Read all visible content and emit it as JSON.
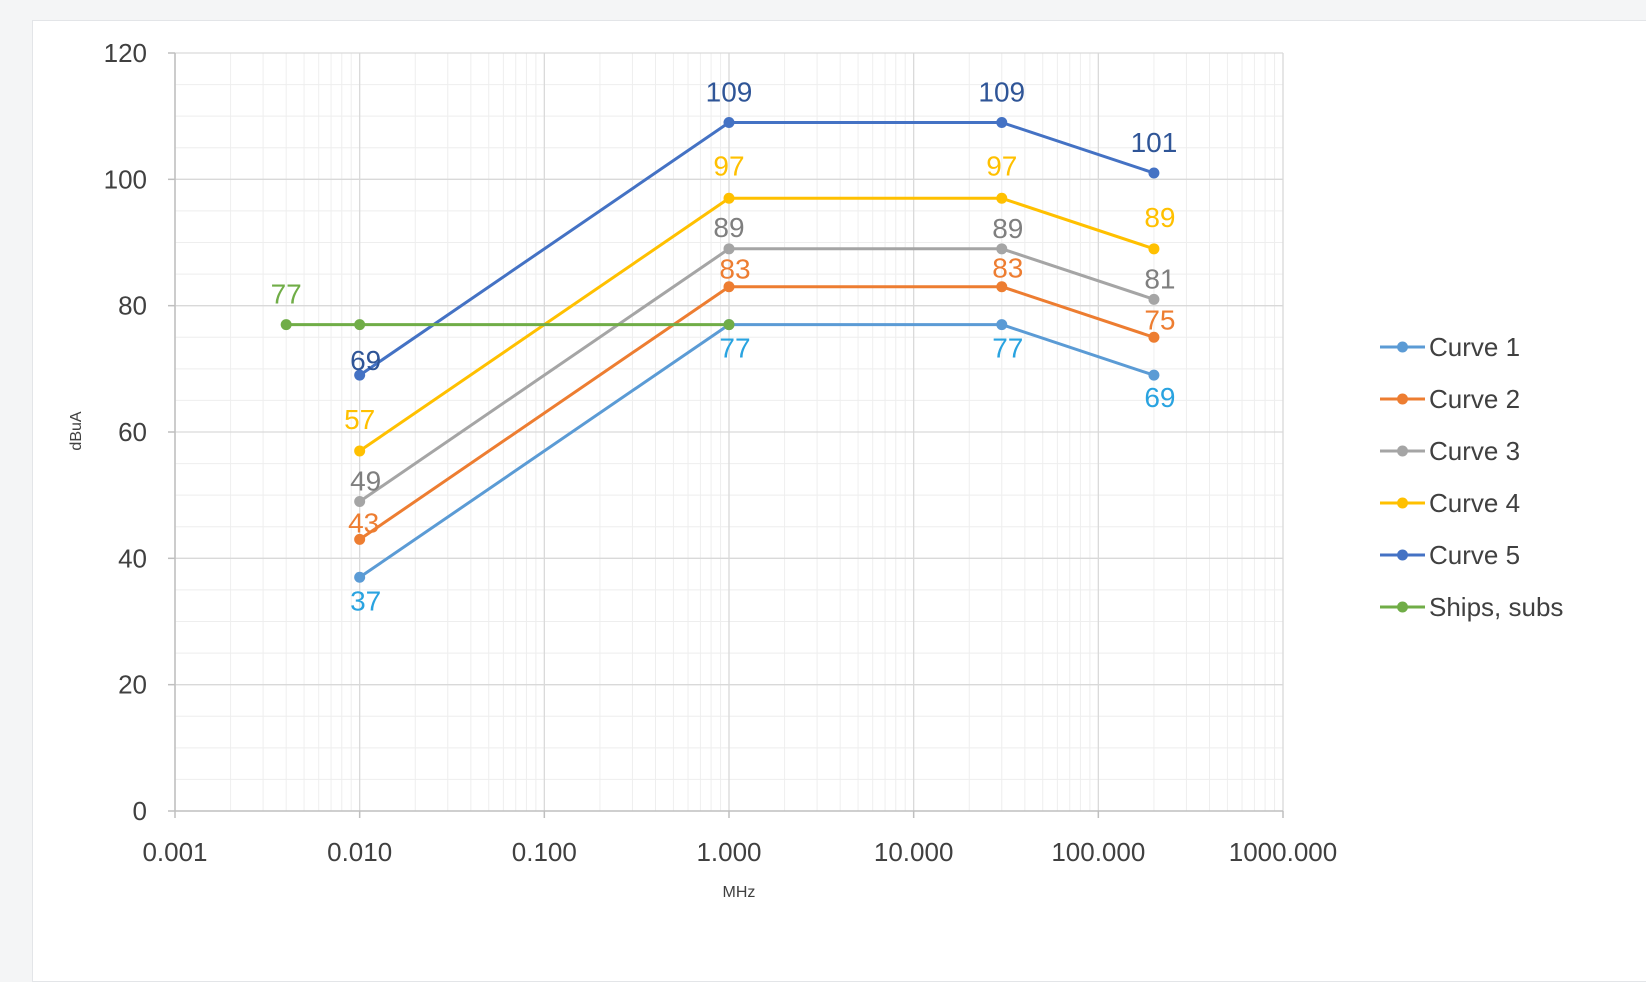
{
  "chart_data": {
    "type": "line",
    "xscale": "log",
    "xlim": [
      0.001,
      1000
    ],
    "ylim": [
      0,
      120
    ],
    "grid": true,
    "xlabel": "MHz",
    "ylabel": "dBuA",
    "legend_position": "right",
    "x_ticks": [
      "0.001",
      "0.010",
      "0.100",
      "1.000",
      "10.000",
      "100.000",
      "1000.000"
    ],
    "y_ticks": [
      "0",
      "20",
      "40",
      "60",
      "80",
      "100",
      "120"
    ],
    "series": [
      {
        "name": "Curve 1",
        "color": "#5b9bd5",
        "label_color": "#29a3e0",
        "x": [
          0.01,
          1,
          30,
          200
        ],
        "y": [
          37,
          77,
          77,
          69
        ],
        "labels": [
          "37",
          "77",
          "77",
          "69"
        ]
      },
      {
        "name": "Curve 2",
        "color": "#ed7d31",
        "label_color": "#ed7d31",
        "x": [
          0.01,
          1,
          30,
          200
        ],
        "y": [
          43,
          83,
          83,
          75
        ],
        "labels": [
          "43",
          "83",
          "83",
          "75"
        ]
      },
      {
        "name": "Curve 3",
        "color": "#a5a5a5",
        "label_color": "#7f7f7f",
        "x": [
          0.01,
          1,
          30,
          200
        ],
        "y": [
          49,
          89,
          89,
          81
        ],
        "labels": [
          "49",
          "89",
          "89",
          "81"
        ]
      },
      {
        "name": "Curve 4",
        "color": "#ffc000",
        "label_color": "#ffc000",
        "x": [
          0.01,
          1,
          30,
          200
        ],
        "y": [
          57,
          97,
          97,
          89
        ],
        "labels": [
          "57",
          "97",
          "97",
          "89"
        ]
      },
      {
        "name": "Curve 5",
        "color": "#4472c4",
        "label_color": "#2f5597",
        "x": [
          0.01,
          1,
          30,
          200
        ],
        "y": [
          69,
          109,
          109,
          101
        ],
        "labels": [
          "69",
          "109",
          "109",
          "101"
        ]
      },
      {
        "name": "Ships, subs",
        "color": "#70ad47",
        "label_color": "#70ad47",
        "x": [
          0.004,
          0.01,
          1
        ],
        "y": [
          77,
          77,
          77
        ],
        "labels": [
          "77"
        ]
      }
    ]
  }
}
